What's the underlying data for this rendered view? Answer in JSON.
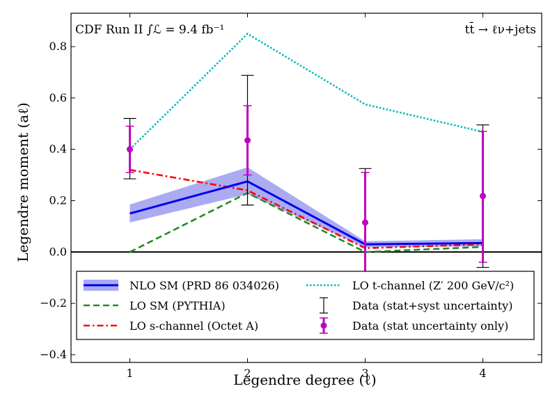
{
  "chart_data": {
    "type": "line",
    "corner_labels": {
      "left": "CDF Run II ∫ℒ = 9.4 fb⁻¹",
      "right": "tt̄ → ℓν+jets"
    },
    "xlabel": "Legendre degree (ℓ)",
    "ylabel": "Legendre moment (aℓ)",
    "xlim": [
      0.5,
      4.5
    ],
    "ylim": [
      -0.43,
      0.93
    ],
    "x_ticks": [
      1,
      2,
      3,
      4
    ],
    "y_ticks": [
      -0.4,
      -0.2,
      0.0,
      0.2,
      0.4,
      0.6,
      0.8
    ],
    "x_tick_labels": [
      "1",
      "2",
      "3",
      "4"
    ],
    "y_tick_labels": [
      "−0.4",
      "−0.2",
      "0.0",
      "0.2",
      "0.4",
      "0.6",
      "0.8"
    ],
    "x": [
      1,
      2,
      3,
      4
    ],
    "series": [
      {
        "name": "NLO SM (PRD 86 034026)",
        "style": "solid",
        "color": "#0000ee",
        "band_color": "#8f8fee",
        "values": [
          0.15,
          0.275,
          0.03,
          0.035
        ],
        "band_low": [
          0.115,
          0.225,
          0.018,
          0.022
        ],
        "band_high": [
          0.185,
          0.33,
          0.042,
          0.05
        ]
      },
      {
        "name": "LO SM (PYTHIA)",
        "style": "dashed",
        "color": "#228b22",
        "values": [
          0.0,
          0.23,
          0.0,
          0.02
        ]
      },
      {
        "name": "LO s-channel (Octet A)",
        "style": "dashdot",
        "color": "#ff0000",
        "values": [
          0.32,
          0.24,
          0.015,
          0.03
        ]
      },
      {
        "name": "LO t-channel (Z′ 200 GeV/c²)",
        "style": "dotted",
        "color": "#00bbbb",
        "values": [
          0.4,
          0.85,
          0.575,
          0.468
        ]
      }
    ],
    "data_points": {
      "values": [
        0.4,
        0.435,
        0.115,
        0.218
      ],
      "total_err_low": [
        0.285,
        0.183,
        -0.095,
        -0.06
      ],
      "total_err_high": [
        0.52,
        0.688,
        0.325,
        0.495
      ],
      "stat_err_low": [
        0.31,
        0.3,
        -0.085,
        -0.04
      ],
      "stat_err_high": [
        0.49,
        0.57,
        0.31,
        0.47
      ]
    },
    "legend": {
      "position": "lower-center",
      "entries": [
        "NLO SM (PRD 86 034026)",
        "LO t-channel (Z′ 200 GeV/c²)",
        "LO SM (PYTHIA)",
        "Data (stat+syst uncertainty)",
        "LO s-channel (Octet A)",
        "Data (stat uncertainty only)"
      ]
    },
    "colors": {
      "data_stat": "#bf00bf",
      "data_total": "#000000"
    },
    "grid": false
  }
}
